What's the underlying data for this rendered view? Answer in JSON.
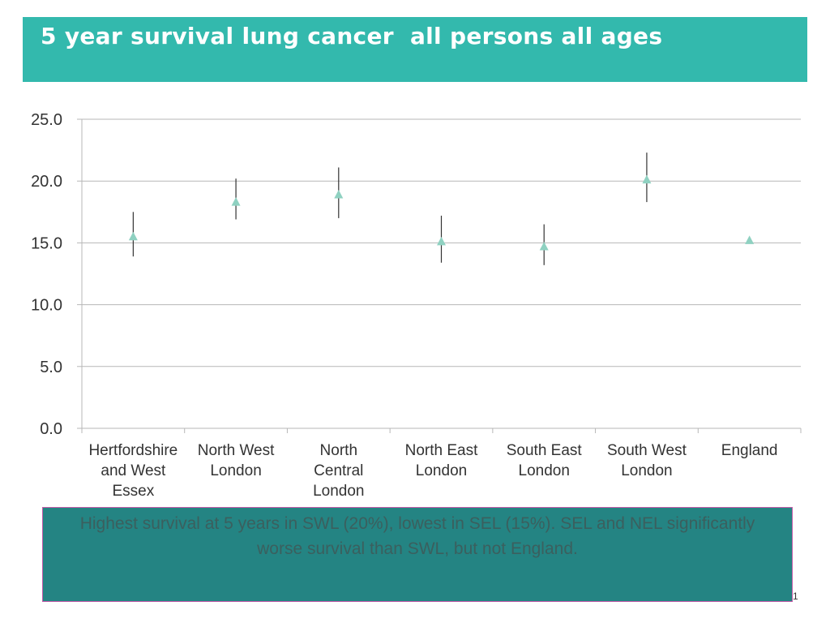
{
  "slide": {
    "title": "5 year survival lung cancer  all persons all ages",
    "caption": "Highest survival at 5 years in SWL (20%), lowest in SEL (15%). SEL and NEL significantly worse survival than SWL, but not England.",
    "slide_number": "1"
  },
  "colors": {
    "title_bar": "#33b9ad",
    "caption_box": "#248483",
    "caption_border": "#c35ba8",
    "marker": "#8fd1c1",
    "error_bar": "#333333",
    "gridline": "#b7b7b7"
  },
  "chart_data": {
    "type": "scatter",
    "marker": "triangle",
    "error_bars": true,
    "categories": [
      [
        "Hertfordshire",
        "and West",
        "Essex"
      ],
      [
        "North West",
        "London"
      ],
      [
        "North",
        "Central",
        "London"
      ],
      [
        "North East",
        "London"
      ],
      [
        "South East",
        "London"
      ],
      [
        "South West",
        "London"
      ],
      [
        "England"
      ]
    ],
    "values": [
      15.5,
      18.3,
      18.9,
      15.1,
      14.7,
      20.1,
      15.2
    ],
    "lower": [
      13.9,
      16.9,
      17.0,
      13.4,
      13.2,
      18.3,
      null
    ],
    "upper": [
      17.5,
      20.2,
      21.1,
      17.2,
      16.5,
      22.3,
      null
    ],
    "ylim": [
      0,
      25
    ],
    "y_ticks": [
      "0.0",
      "5.0",
      "10.0",
      "15.0",
      "20.0",
      "25.0"
    ],
    "grid": true,
    "xlabel": "",
    "ylabel": ""
  }
}
